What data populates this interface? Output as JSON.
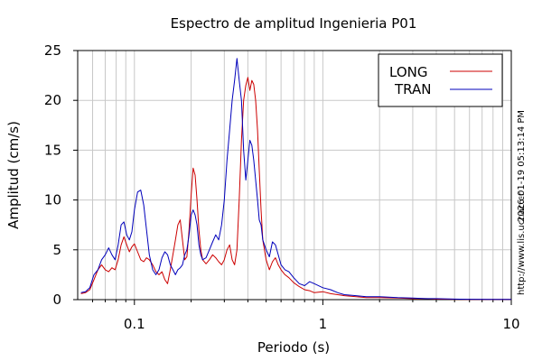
{
  "chart_data": {
    "type": "line",
    "title": "Espectro de amplitud Ingenieria P01",
    "xlabel": "Periodo (s)",
    "ylabel": "Amplitud (cm/s)",
    "x_scale": "log",
    "xlim": [
      0.05,
      10
    ],
    "ylim": [
      0,
      25
    ],
    "grid": true,
    "xticks": [
      0.1,
      1,
      10
    ],
    "xtick_labels": [
      "0.1",
      "1",
      "10"
    ],
    "yticks": [
      0,
      5,
      10,
      15,
      20,
      25
    ],
    "ytick_labels": [
      "0",
      "5",
      "10",
      "15",
      "20",
      "25"
    ],
    "legend_position": "top-right",
    "side_labels": [
      "2026-01-19 05:13:14 PM",
      "http://www.lis.ucr.ac.cr"
    ],
    "series": [
      {
        "name": "LONG",
        "color": "#cc0000",
        "x": [
          0.052,
          0.055,
          0.058,
          0.061,
          0.064,
          0.067,
          0.07,
          0.073,
          0.076,
          0.079,
          0.082,
          0.085,
          0.088,
          0.091,
          0.094,
          0.097,
          0.1,
          0.104,
          0.108,
          0.112,
          0.116,
          0.12,
          0.125,
          0.13,
          0.135,
          0.14,
          0.145,
          0.15,
          0.155,
          0.16,
          0.165,
          0.17,
          0.175,
          0.18,
          0.185,
          0.19,
          0.195,
          0.2,
          0.205,
          0.21,
          0.215,
          0.22,
          0.225,
          0.23,
          0.24,
          0.25,
          0.26,
          0.27,
          0.28,
          0.29,
          0.3,
          0.31,
          0.32,
          0.33,
          0.34,
          0.35,
          0.36,
          0.37,
          0.38,
          0.39,
          0.4,
          0.41,
          0.42,
          0.43,
          0.44,
          0.45,
          0.46,
          0.47,
          0.48,
          0.5,
          0.52,
          0.54,
          0.56,
          0.58,
          0.6,
          0.63,
          0.66,
          0.7,
          0.75,
          0.8,
          0.85,
          0.9,
          1.0,
          1.1,
          1.2,
          1.3,
          1.5,
          1.7,
          2.0,
          2.5,
          3.0,
          3.5,
          4.0,
          5.0,
          6.0,
          8.0,
          10.0
        ],
        "y": [
          0.6,
          0.7,
          1.0,
          2.0,
          3.0,
          3.5,
          3.0,
          2.8,
          3.2,
          3.0,
          4.0,
          5.5,
          6.3,
          5.5,
          4.8,
          5.3,
          5.6,
          4.8,
          4.0,
          3.8,
          4.2,
          4.0,
          3.5,
          2.8,
          2.5,
          2.8,
          2.0,
          1.6,
          3.0,
          4.5,
          6.0,
          7.5,
          8.0,
          6.0,
          4.0,
          4.3,
          7.0,
          10.5,
          13.2,
          12.5,
          10.0,
          7.0,
          5.0,
          4.0,
          3.6,
          4.0,
          4.5,
          4.2,
          3.8,
          3.5,
          4.0,
          5.0,
          5.5,
          4.0,
          3.5,
          5.0,
          10.0,
          16.0,
          20.0,
          21.5,
          22.3,
          21.0,
          22.0,
          21.6,
          20.0,
          17.0,
          13.0,
          9.0,
          6.0,
          4.0,
          3.0,
          3.8,
          4.2,
          3.5,
          3.0,
          2.5,
          2.2,
          1.7,
          1.3,
          1.0,
          0.9,
          0.7,
          0.8,
          0.6,
          0.5,
          0.4,
          0.3,
          0.2,
          0.2,
          0.15,
          0.1,
          0.1,
          0.05,
          0.04,
          0.03,
          0.02,
          0.02
        ]
      },
      {
        "name": "TRAN",
        "color": "#0000bb",
        "x": [
          0.052,
          0.055,
          0.058,
          0.061,
          0.064,
          0.067,
          0.07,
          0.073,
          0.076,
          0.079,
          0.082,
          0.085,
          0.088,
          0.091,
          0.094,
          0.097,
          0.1,
          0.104,
          0.108,
          0.112,
          0.116,
          0.12,
          0.125,
          0.13,
          0.135,
          0.14,
          0.145,
          0.15,
          0.155,
          0.16,
          0.165,
          0.17,
          0.175,
          0.18,
          0.185,
          0.19,
          0.195,
          0.2,
          0.205,
          0.21,
          0.215,
          0.22,
          0.225,
          0.23,
          0.24,
          0.25,
          0.26,
          0.27,
          0.28,
          0.29,
          0.3,
          0.31,
          0.32,
          0.33,
          0.34,
          0.35,
          0.36,
          0.37,
          0.38,
          0.39,
          0.4,
          0.41,
          0.42,
          0.43,
          0.44,
          0.45,
          0.46,
          0.47,
          0.48,
          0.5,
          0.52,
          0.54,
          0.56,
          0.58,
          0.6,
          0.63,
          0.66,
          0.7,
          0.75,
          0.8,
          0.85,
          0.9,
          1.0,
          1.1,
          1.2,
          1.3,
          1.5,
          1.7,
          2.0,
          2.5,
          3.0,
          3.5,
          4.0,
          5.0,
          6.0,
          8.0,
          10.0
        ],
        "y": [
          0.7,
          0.8,
          1.2,
          2.5,
          3.0,
          4.0,
          4.5,
          5.2,
          4.5,
          4.0,
          5.5,
          7.5,
          7.8,
          6.5,
          6.0,
          6.8,
          9.0,
          10.8,
          11.0,
          9.5,
          7.0,
          4.5,
          3.0,
          2.5,
          3.0,
          4.2,
          4.8,
          4.5,
          3.5,
          3.0,
          2.5,
          3.0,
          3.2,
          3.5,
          4.5,
          5.0,
          6.5,
          8.5,
          9.0,
          8.5,
          7.5,
          5.5,
          4.5,
          4.0,
          4.2,
          5.0,
          5.8,
          6.5,
          6.0,
          7.5,
          10.0,
          14.0,
          17.0,
          20.0,
          22.0,
          24.2,
          22.0,
          20.0,
          15.0,
          12.0,
          14.0,
          16.0,
          15.5,
          14.0,
          12.0,
          10.0,
          8.0,
          7.5,
          6.0,
          5.0,
          4.3,
          5.8,
          5.5,
          4.5,
          3.5,
          3.0,
          2.8,
          2.2,
          1.6,
          1.4,
          1.8,
          1.6,
          1.2,
          1.0,
          0.7,
          0.5,
          0.4,
          0.3,
          0.3,
          0.2,
          0.15,
          0.1,
          0.1,
          0.05,
          0.04,
          0.03,
          0.02
        ]
      }
    ]
  }
}
